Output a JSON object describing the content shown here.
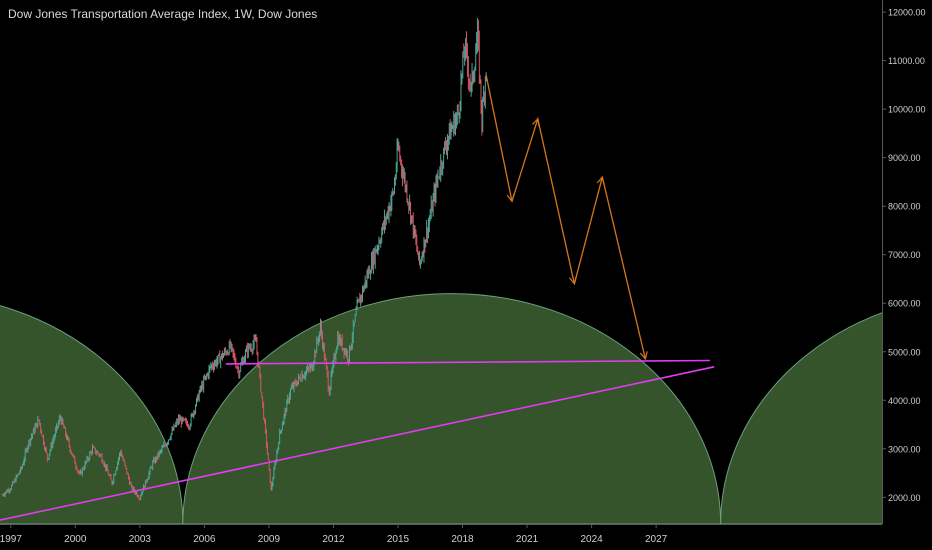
{
  "colors": {
    "background": "#000000",
    "cycle_fill": "#35542b",
    "cycle_stroke": "#6aa07f",
    "trendline": "#e23cf0",
    "projection": "#d4771c",
    "candle_up": "#4fa79a",
    "candle_down": "#d45766",
    "axis_line": "#5a5a5a",
    "axis_text": "#d0d0d0"
  },
  "chart_data": {
    "type": "line",
    "title": "Dow Jones Transportation Average Index, 1W, Dow Jones",
    "x_ticks": [
      "1997",
      "2000",
      "2003",
      "2006",
      "2009",
      "2012",
      "2015",
      "2018",
      "2021",
      "2024",
      "2027"
    ],
    "y_ticks": [
      "2000.00",
      "3000.00",
      "4000.00",
      "5000.00",
      "6000.00",
      "7000.00",
      "8000.00",
      "9000.00",
      "10000.00",
      "11000.00",
      "12000.00"
    ],
    "xlim": [
      1996.5,
      2037.5
    ],
    "ylim": [
      1450,
      12250
    ],
    "series": [
      {
        "kind": "price",
        "values": [
          [
            1996.6,
            2050
          ],
          [
            1997.0,
            2200
          ],
          [
            1997.5,
            2600
          ],
          [
            1997.8,
            3100
          ],
          [
            1998.3,
            3600
          ],
          [
            1998.7,
            2800
          ],
          [
            1999.3,
            3650
          ],
          [
            1999.8,
            2950
          ],
          [
            2000.2,
            2450
          ],
          [
            2000.8,
            3000
          ],
          [
            2001.2,
            2850
          ],
          [
            2001.7,
            2300
          ],
          [
            2002.1,
            2950
          ],
          [
            2002.6,
            2200
          ],
          [
            2003.0,
            2000
          ],
          [
            2003.6,
            2700
          ],
          [
            2004.2,
            3100
          ],
          [
            2004.8,
            3600
          ],
          [
            2005.3,
            3500
          ],
          [
            2005.8,
            4200
          ],
          [
            2006.3,
            4700
          ],
          [
            2006.8,
            4900
          ],
          [
            2007.2,
            5100
          ],
          [
            2007.6,
            4600
          ],
          [
            2008.0,
            5050
          ],
          [
            2008.4,
            5200
          ],
          [
            2008.8,
            3500
          ],
          [
            2009.1,
            2150
          ],
          [
            2009.5,
            3300
          ],
          [
            2010.0,
            4200
          ],
          [
            2010.5,
            4500
          ],
          [
            2011.0,
            4700
          ],
          [
            2011.4,
            5500
          ],
          [
            2011.8,
            4200
          ],
          [
            2012.2,
            5300
          ],
          [
            2012.7,
            4900
          ],
          [
            2013.1,
            5900
          ],
          [
            2013.6,
            6600
          ],
          [
            2014.2,
            7400
          ],
          [
            2014.8,
            8300
          ],
          [
            2015.0,
            9200
          ],
          [
            2015.5,
            8100
          ],
          [
            2016.0,
            6800
          ],
          [
            2016.5,
            7800
          ],
          [
            2016.9,
            8700
          ],
          [
            2017.3,
            9400
          ],
          [
            2017.8,
            9900
          ],
          [
            2018.1,
            11300
          ],
          [
            2018.4,
            10400
          ],
          [
            2018.7,
            11500
          ],
          [
            2018.9,
            9800
          ],
          [
            2019.1,
            10900
          ]
        ]
      },
      {
        "kind": "projection",
        "values": [
          [
            2019.1,
            10700
          ],
          [
            2020.3,
            8100
          ],
          [
            2021.5,
            9800
          ],
          [
            2023.2,
            6400
          ],
          [
            2024.5,
            8600
          ],
          [
            2026.5,
            4850
          ]
        ]
      },
      {
        "kind": "horizontal-line",
        "values": [
          [
            2007.0,
            4750
          ],
          [
            2029.5,
            4820
          ]
        ]
      },
      {
        "kind": "trendline",
        "values": [
          [
            1996.5,
            1530
          ],
          [
            2029.7,
            4690
          ]
        ]
      }
    ],
    "cycles": [
      [
        1980.0,
        2005.0
      ],
      [
        2005.0,
        2030.0
      ],
      [
        2030.0,
        2055.0
      ]
    ],
    "cycle_peak": 6200,
    "grid": false
  }
}
